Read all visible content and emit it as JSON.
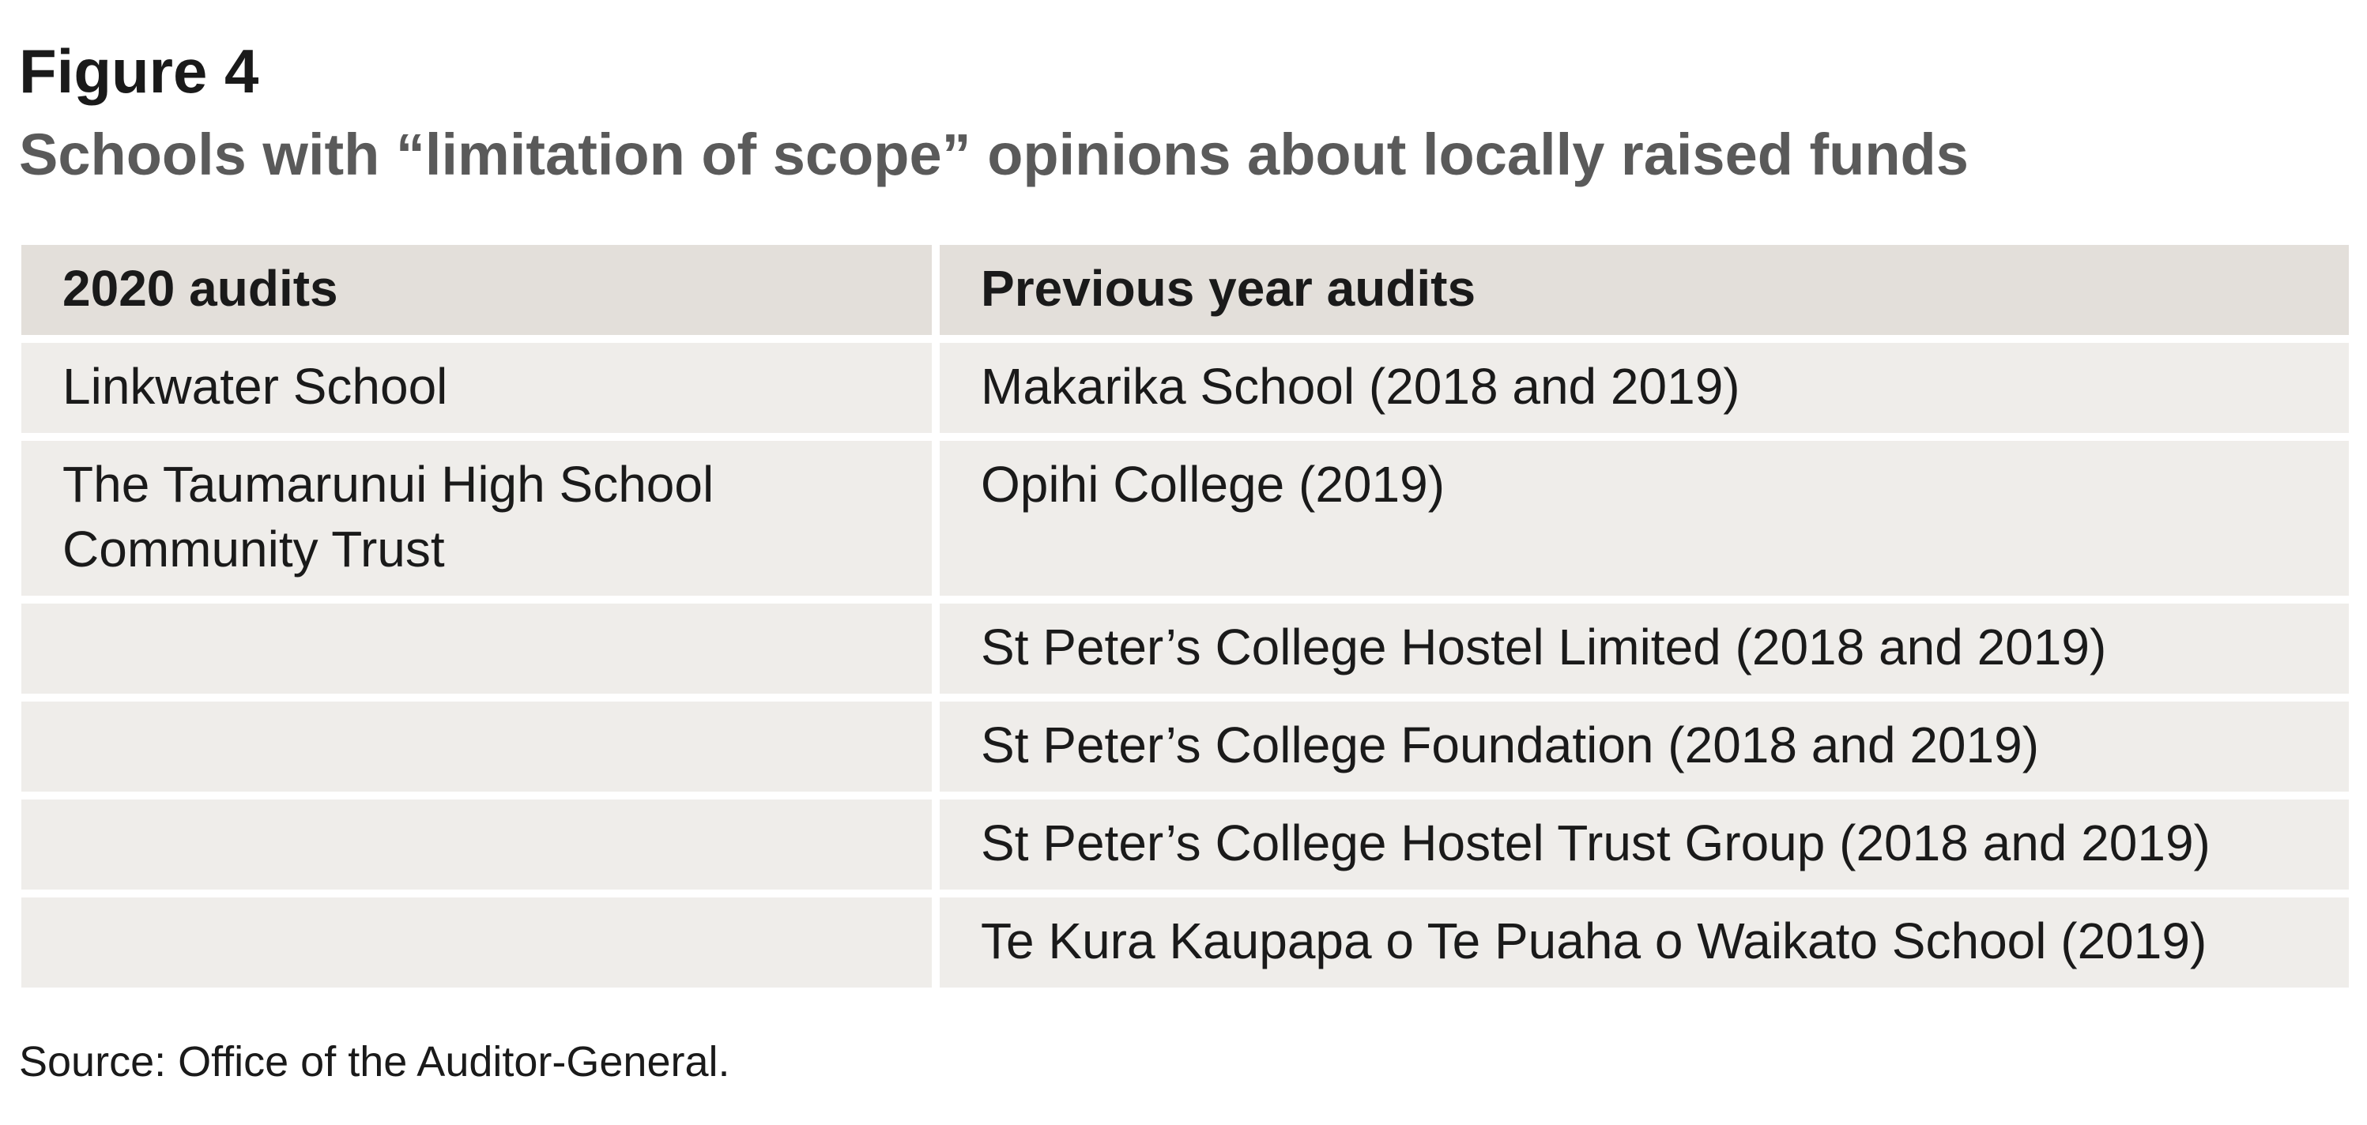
{
  "figure": {
    "label": "Figure 4",
    "title": "Schools with “limitation of scope” opinions about locally raised funds"
  },
  "table": {
    "headers": [
      "2020 audits",
      "Previous year audits"
    ],
    "rows": [
      [
        "Linkwater School",
        "Makarika School (2018 and 2019)"
      ],
      [
        "The Taumarunui High School Community Trust",
        "Opihi College (2019)"
      ],
      [
        "",
        "St Peter’s College Hostel Limited (2018 and 2019)"
      ],
      [
        "",
        "St Peter’s College Foundation (2018 and 2019)"
      ],
      [
        "",
        "St Peter’s College Hostel Trust Group (2018 and 2019)"
      ],
      [
        "",
        "Te Kura Kaupapa o Te Puaha o Waikato School (2019)"
      ]
    ]
  },
  "colors": {
    "header_bg": "#e3dfda",
    "cell_bg": "#efedea",
    "title_color": "#5a5a5a"
  },
  "source": "Source: Office of the Auditor-General."
}
